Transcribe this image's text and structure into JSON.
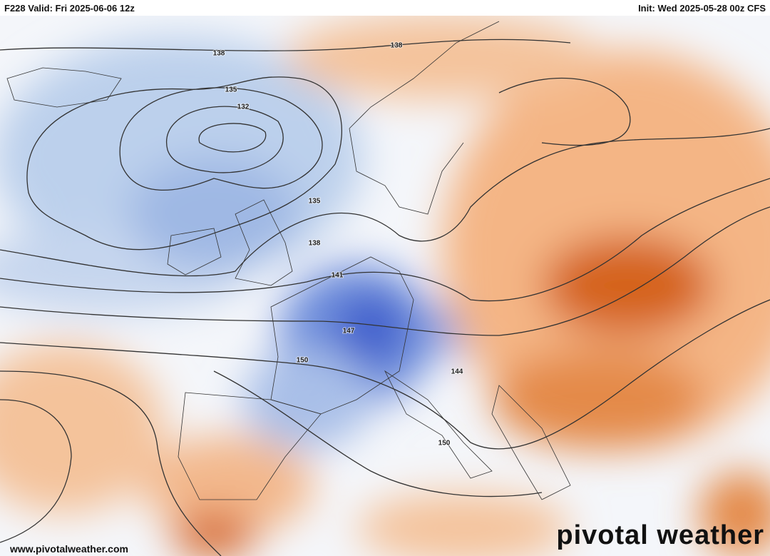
{
  "header": {
    "valid": "F228 Valid: Fri 2025-06-06 12z",
    "init": "Init: Wed 2025-05-28 00z CFS"
  },
  "contour_labels": [
    138,
    138,
    135,
    132,
    135,
    138,
    141,
    147,
    150,
    144,
    150
  ],
  "footer": {
    "url": "www.pivotalweather.com",
    "brand": "pivotal weather"
  }
}
